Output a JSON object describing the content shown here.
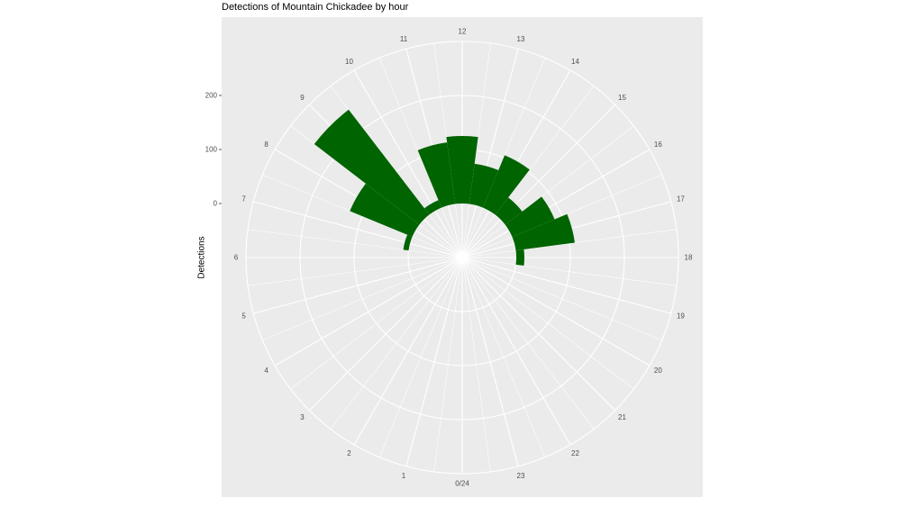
{
  "chart_data": {
    "type": "bar",
    "coord": "polar",
    "title": "Detections of Mountain Chickadee by hour",
    "xlabel": "",
    "ylabel": "Detections",
    "ylim": [
      -100,
      300
    ],
    "yticks": [
      0,
      100,
      200
    ],
    "categories": [
      "0/24",
      "1",
      "2",
      "3",
      "4",
      "5",
      "6",
      "7",
      "8",
      "9",
      "10",
      "11",
      "12",
      "13",
      "14",
      "15",
      "16",
      "17",
      "18",
      "19",
      "20",
      "21",
      "22",
      "23"
    ],
    "values": [
      0,
      0,
      0,
      0,
      0,
      0,
      0,
      10,
      125,
      245,
      15,
      115,
      125,
      75,
      105,
      40,
      85,
      110,
      15,
      0,
      0,
      0,
      0,
      0
    ],
    "bar_color": "#006400",
    "panel_color": "#ebebeb",
    "grid_color": "#ffffff",
    "grid": true
  }
}
